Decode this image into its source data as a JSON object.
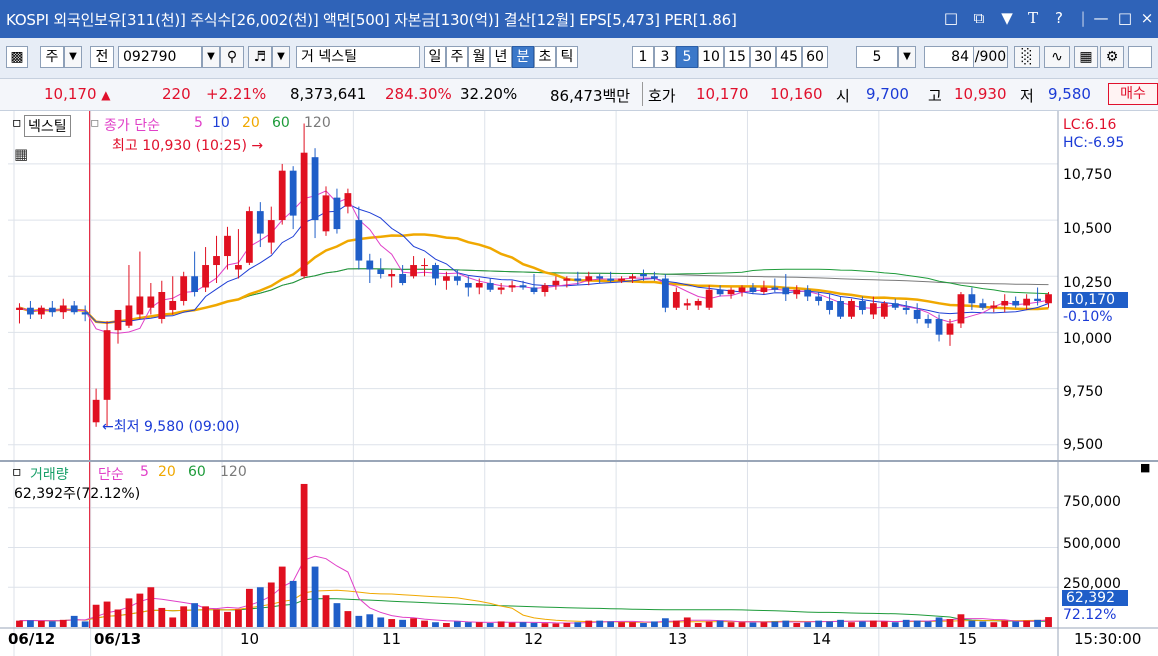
{
  "title_bar": {
    "title": "KOSPI 외국인보유[311(천)] 주식수[26,002(천)] 액면[500] 자본금[130(억)] 결산[12월] EPS[5,473] PER[1.86]",
    "icons": [
      "window-icon",
      "copy-icon",
      "pin-icon",
      "font-icon",
      "help-icon",
      "minimize-icon",
      "maximize-icon",
      "close-icon"
    ]
  },
  "toolbar": {
    "market": "주",
    "scope": "전",
    "code": "092790",
    "name_prefix": "거",
    "name": "넥스틸",
    "periods": [
      "일",
      "주",
      "월",
      "년",
      "분",
      "초",
      "틱"
    ],
    "selected_period": "분",
    "intervals": [
      "1",
      "3",
      "5",
      "10",
      "15",
      "30",
      "45",
      "60"
    ],
    "selected_interval": "5",
    "interval_value": "5",
    "count": "84",
    "count_total": "/900"
  },
  "quote": {
    "price": "10,170",
    "change": "220",
    "pct": "+2.21%",
    "volume": "8,373,641",
    "vol_ratio": "284.30%",
    "turnover": "32.20%",
    "amount": "86,473백만",
    "ask_label": "호가",
    "ask": "10,170",
    "bid": "10,160",
    "open_label": "시",
    "open": "9,700",
    "high_label": "고",
    "high": "10,930",
    "low_label": "저",
    "low": "9,580",
    "buy_button": "매수"
  },
  "price_panel": {
    "name": "넥스틸",
    "legend_prefix": "종가 단순",
    "ma": [
      "5",
      "10",
      "20",
      "60",
      "120"
    ],
    "ma_colors": [
      "#e040c8",
      "#1f3fd6",
      "#f0a800",
      "#1e9b3a",
      "#7a7a7a"
    ],
    "max_label": "최고 10,930 (10:25)",
    "min_label": "최저 9,580 (09:00)",
    "lc": "LC:6.16",
    "hc": "HC:-6.95",
    "y_ticks": [
      "10,750",
      "10,500",
      "10,250",
      "10,000",
      "9,750",
      "9,500"
    ],
    "cur_price": "10,170",
    "cur_pct": "-0.10%"
  },
  "volume_panel": {
    "name": "거래량",
    "legend_prefix": "단순",
    "ma": [
      "5",
      "20",
      "60",
      "120"
    ],
    "value_label": "62,392주(72.12%)",
    "y_ticks": [
      "750,000",
      "500,000",
      "250,000"
    ],
    "cur_value": "62,392",
    "cur_pct": "72.12%"
  },
  "x_axis": {
    "labels": [
      "06/12",
      "06/13",
      "10",
      "11",
      "12",
      "13",
      "14",
      "15",
      "15:30:00"
    ]
  },
  "chart_data": {
    "type": "candlestick",
    "ylim": [
      9450,
      10950
    ],
    "colors": {
      "up": "#e01020",
      "down": "#1f5ec8"
    },
    "candles": [
      {
        "o": 10100,
        "h": 10130,
        "l": 10040,
        "c": 10110
      },
      {
        "o": 10110,
        "h": 10140,
        "l": 10060,
        "c": 10080
      },
      {
        "o": 10080,
        "h": 10120,
        "l": 10060,
        "c": 10110
      },
      {
        "o": 10110,
        "h": 10140,
        "l": 10070,
        "c": 10090
      },
      {
        "o": 10090,
        "h": 10150,
        "l": 10060,
        "c": 10120
      },
      {
        "o": 10120,
        "h": 10140,
        "l": 10080,
        "c": 10090
      },
      {
        "o": 10090,
        "h": 10120,
        "l": 10050,
        "c": 10080
      },
      {
        "o": 9600,
        "h": 9750,
        "l": 9580,
        "c": 9700
      },
      {
        "o": 9700,
        "h": 10050,
        "l": 9580,
        "c": 10010
      },
      {
        "o": 10010,
        "h": 10100,
        "l": 9950,
        "c": 10100
      },
      {
        "o": 10030,
        "h": 10300,
        "l": 10020,
        "c": 10120
      },
      {
        "o": 10080,
        "h": 10360,
        "l": 10060,
        "c": 10160
      },
      {
        "o": 10110,
        "h": 10220,
        "l": 10080,
        "c": 10160
      },
      {
        "o": 10060,
        "h": 10230,
        "l": 10040,
        "c": 10180
      },
      {
        "o": 10100,
        "h": 10250,
        "l": 10080,
        "c": 10140
      },
      {
        "o": 10140,
        "h": 10270,
        "l": 10120,
        "c": 10250
      },
      {
        "o": 10250,
        "h": 10360,
        "l": 10160,
        "c": 10180
      },
      {
        "o": 10200,
        "h": 10380,
        "l": 10180,
        "c": 10300
      },
      {
        "o": 10300,
        "h": 10430,
        "l": 10220,
        "c": 10340
      },
      {
        "o": 10340,
        "h": 10470,
        "l": 10280,
        "c": 10430
      },
      {
        "o": 10280,
        "h": 10460,
        "l": 10240,
        "c": 10300
      },
      {
        "o": 10310,
        "h": 10560,
        "l": 10300,
        "c": 10540
      },
      {
        "o": 10540,
        "h": 10580,
        "l": 10380,
        "c": 10440
      },
      {
        "o": 10400,
        "h": 10560,
        "l": 10350,
        "c": 10500
      },
      {
        "o": 10500,
        "h": 10750,
        "l": 10480,
        "c": 10720
      },
      {
        "o": 10720,
        "h": 10740,
        "l": 10460,
        "c": 10520
      },
      {
        "o": 10250,
        "h": 10930,
        "l": 10240,
        "c": 10800
      },
      {
        "o": 10780,
        "h": 10820,
        "l": 10420,
        "c": 10500
      },
      {
        "o": 10450,
        "h": 10650,
        "l": 10430,
        "c": 10610
      },
      {
        "o": 10600,
        "h": 10640,
        "l": 10440,
        "c": 10460
      },
      {
        "o": 10560,
        "h": 10640,
        "l": 10530,
        "c": 10620
      },
      {
        "o": 10500,
        "h": 10560,
        "l": 10280,
        "c": 10320
      },
      {
        "o": 10320,
        "h": 10350,
        "l": 10220,
        "c": 10280
      },
      {
        "o": 10280,
        "h": 10330,
        "l": 10240,
        "c": 10260
      },
      {
        "o": 10250,
        "h": 10280,
        "l": 10200,
        "c": 10260
      },
      {
        "o": 10260,
        "h": 10300,
        "l": 10210,
        "c": 10220
      },
      {
        "o": 10250,
        "h": 10340,
        "l": 10240,
        "c": 10300
      },
      {
        "o": 10300,
        "h": 10330,
        "l": 10250,
        "c": 10300
      },
      {
        "o": 10300,
        "h": 10310,
        "l": 10210,
        "c": 10240
      },
      {
        "o": 10230,
        "h": 10270,
        "l": 10190,
        "c": 10250
      },
      {
        "o": 10250,
        "h": 10280,
        "l": 10210,
        "c": 10230
      },
      {
        "o": 10220,
        "h": 10250,
        "l": 10160,
        "c": 10200
      },
      {
        "o": 10200,
        "h": 10240,
        "l": 10170,
        "c": 10220
      },
      {
        "o": 10220,
        "h": 10240,
        "l": 10180,
        "c": 10190
      },
      {
        "o": 10190,
        "h": 10220,
        "l": 10170,
        "c": 10200
      },
      {
        "o": 10200,
        "h": 10230,
        "l": 10180,
        "c": 10210
      },
      {
        "o": 10210,
        "h": 10230,
        "l": 10190,
        "c": 10200
      },
      {
        "o": 10200,
        "h": 10260,
        "l": 10170,
        "c": 10180
      },
      {
        "o": 10180,
        "h": 10220,
        "l": 10160,
        "c": 10210
      },
      {
        "o": 10210,
        "h": 10250,
        "l": 10190,
        "c": 10230
      },
      {
        "o": 10230,
        "h": 10250,
        "l": 10200,
        "c": 10240
      },
      {
        "o": 10240,
        "h": 10270,
        "l": 10210,
        "c": 10230
      },
      {
        "o": 10230,
        "h": 10270,
        "l": 10210,
        "c": 10250
      },
      {
        "o": 10250,
        "h": 10260,
        "l": 10220,
        "c": 10240
      },
      {
        "o": 10240,
        "h": 10270,
        "l": 10220,
        "c": 10230
      },
      {
        "o": 10230,
        "h": 10250,
        "l": 10220,
        "c": 10240
      },
      {
        "o": 10240,
        "h": 10260,
        "l": 10220,
        "c": 10250
      },
      {
        "o": 10260,
        "h": 10280,
        "l": 10230,
        "c": 10250
      },
      {
        "o": 10250,
        "h": 10270,
        "l": 10230,
        "c": 10240
      },
      {
        "o": 10240,
        "h": 10260,
        "l": 10090,
        "c": 10110
      },
      {
        "o": 10110,
        "h": 10200,
        "l": 10100,
        "c": 10180
      },
      {
        "o": 10120,
        "h": 10150,
        "l": 10100,
        "c": 10130
      },
      {
        "o": 10120,
        "h": 10150,
        "l": 10100,
        "c": 10140
      },
      {
        "o": 10110,
        "h": 10210,
        "l": 10100,
        "c": 10190
      },
      {
        "o": 10190,
        "h": 10210,
        "l": 10160,
        "c": 10170
      },
      {
        "o": 10170,
        "h": 10200,
        "l": 10150,
        "c": 10190
      },
      {
        "o": 10180,
        "h": 10210,
        "l": 10160,
        "c": 10200
      },
      {
        "o": 10200,
        "h": 10220,
        "l": 10170,
        "c": 10180
      },
      {
        "o": 10180,
        "h": 10230,
        "l": 10170,
        "c": 10200
      },
      {
        "o": 10200,
        "h": 10240,
        "l": 10180,
        "c": 10190
      },
      {
        "o": 10200,
        "h": 10260,
        "l": 10140,
        "c": 10170
      },
      {
        "o": 10170,
        "h": 10210,
        "l": 10150,
        "c": 10190
      },
      {
        "o": 10190,
        "h": 10210,
        "l": 10140,
        "c": 10160
      },
      {
        "o": 10160,
        "h": 10180,
        "l": 10120,
        "c": 10140
      },
      {
        "o": 10140,
        "h": 10170,
        "l": 10080,
        "c": 10100
      },
      {
        "o": 10140,
        "h": 10160,
        "l": 10060,
        "c": 10070
      },
      {
        "o": 10070,
        "h": 10150,
        "l": 10060,
        "c": 10140
      },
      {
        "o": 10140,
        "h": 10160,
        "l": 10080,
        "c": 10100
      },
      {
        "o": 10080,
        "h": 10160,
        "l": 10060,
        "c": 10130
      },
      {
        "o": 10070,
        "h": 10140,
        "l": 10060,
        "c": 10130
      },
      {
        "o": 10130,
        "h": 10150,
        "l": 10100,
        "c": 10110
      },
      {
        "o": 10110,
        "h": 10140,
        "l": 10080,
        "c": 10100
      },
      {
        "o": 10100,
        "h": 10130,
        "l": 10040,
        "c": 10060
      },
      {
        "o": 10060,
        "h": 10080,
        "l": 10020,
        "c": 10040
      },
      {
        "o": 10060,
        "h": 10080,
        "l": 9960,
        "c": 9990
      },
      {
        "o": 9990,
        "h": 10060,
        "l": 9940,
        "c": 10040
      },
      {
        "o": 10040,
        "h": 10180,
        "l": 10020,
        "c": 10170
      },
      {
        "o": 10170,
        "h": 10200,
        "l": 10100,
        "c": 10130
      },
      {
        "o": 10130,
        "h": 10150,
        "l": 10100,
        "c": 10110
      },
      {
        "o": 10110,
        "h": 10140,
        "l": 10090,
        "c": 10120
      },
      {
        "o": 10120,
        "h": 10170,
        "l": 10090,
        "c": 10140
      },
      {
        "o": 10140,
        "h": 10160,
        "l": 10110,
        "c": 10120
      },
      {
        "o": 10120,
        "h": 10170,
        "l": 10100,
        "c": 10150
      },
      {
        "o": 10150,
        "h": 10200,
        "l": 10120,
        "c": 10140
      },
      {
        "o": 10130,
        "h": 10180,
        "l": 10110,
        "c": 10170
      }
    ],
    "volume": [
      40000,
      42000,
      38000,
      36000,
      45000,
      70000,
      35000,
      140000,
      160000,
      110000,
      180000,
      210000,
      250000,
      120000,
      60000,
      130000,
      150000,
      130000,
      110000,
      95000,
      110000,
      240000,
      250000,
      280000,
      380000,
      290000,
      900000,
      380000,
      200000,
      150000,
      100000,
      70000,
      80000,
      60000,
      50000,
      45000,
      55000,
      40000,
      30000,
      25000,
      35000,
      30000,
      30000,
      25000,
      35000,
      28000,
      30000,
      26000,
      24000,
      22000,
      25000,
      30000,
      40000,
      40000,
      35000,
      30000,
      30000,
      25000,
      35000,
      55000,
      40000,
      60000,
      25000,
      35000,
      40000,
      30000,
      30000,
      28000,
      30000,
      35000,
      40000,
      25000,
      30000,
      40000,
      35000,
      45000,
      30000,
      35000,
      40000,
      35000,
      30000,
      45000,
      40000,
      35000,
      60000,
      50000,
      80000,
      40000,
      35000,
      30000,
      40000,
      35000,
      40000,
      45000,
      62392
    ]
  }
}
